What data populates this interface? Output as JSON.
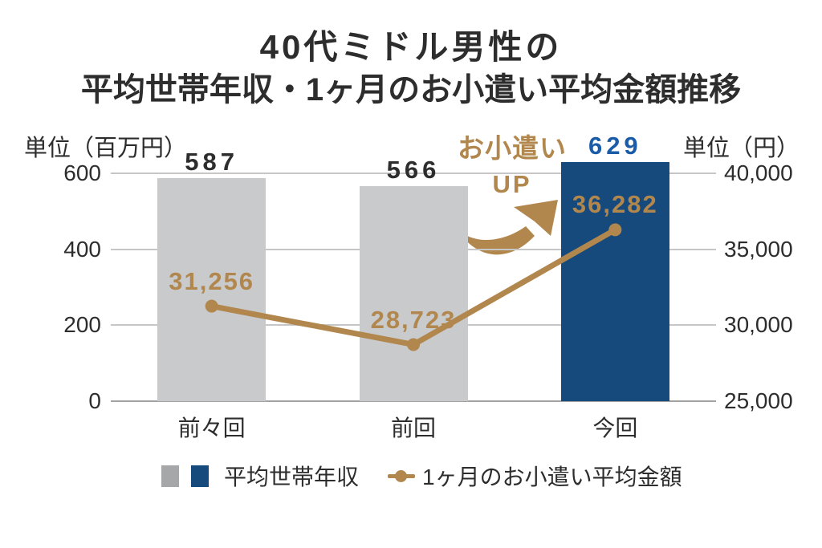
{
  "chart_data": {
    "type": "combo-bar-line",
    "title": "40代ミドル男性の 平均世帯年収・1ヶ月のお小遣い平均金額推移",
    "title_lines": [
      "40代ミドル男性の",
      "平均世帯年収・1ヶ月のお小遣い平均金額推移"
    ],
    "categories": [
      "前々回",
      "前回",
      "今回"
    ],
    "series": [
      {
        "name": "平均世帯年収",
        "type": "bar",
        "axis": "left",
        "values": [
          587,
          566,
          629
        ],
        "value_labels": [
          "587",
          "566",
          "629"
        ],
        "bar_colors": [
          "#c9cacc",
          "#c9cacc",
          "#164a7d"
        ],
        "value_label_colors": [
          "#2d2d2d",
          "#2d2d2d",
          "#1b5ca8"
        ]
      },
      {
        "name": "1ヶ月のお小遣い平均金額",
        "type": "line",
        "axis": "right",
        "values": [
          31256,
          28723,
          36282
        ],
        "value_labels": [
          "31,256",
          "28,723",
          "36,282"
        ],
        "color": "#b1874e"
      }
    ],
    "left_axis": {
      "unit_label": "単位（百万円）",
      "ticks": [
        "600",
        "400",
        "200",
        "0"
      ],
      "range": [
        0,
        600
      ]
    },
    "right_axis": {
      "unit_label": "単位（円）",
      "ticks": [
        "40,000",
        "35,000",
        "30,000",
        "25,000"
      ],
      "range": [
        25000,
        40000
      ]
    },
    "annotation": {
      "line1": "お小遣い",
      "line2": "UP",
      "color": "#b1874e"
    },
    "legend": {
      "position": "bottom",
      "bar_swatch_colors": [
        "#a6a7a9",
        "#164a7d"
      ]
    },
    "grid": true,
    "grid_color": "#c6c6c6",
    "axis_color": "#a3a3a3",
    "text_color": "#2d2d2d"
  }
}
